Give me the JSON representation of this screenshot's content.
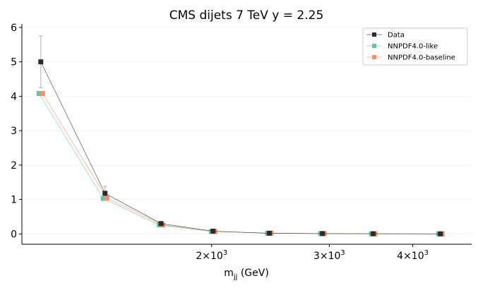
{
  "chart_data": {
    "type": "line",
    "title": "CMS dijets 7 TeV y = 2.25",
    "xlabel": "m",
    "xlabel_sub": "jj",
    "xlabel_unit": " (GeV)",
    "ylabel": "",
    "x_scale": "log",
    "xlim": [
      1040,
      4900
    ],
    "ylim": [
      -0.3,
      6.1
    ],
    "y_ticks": [
      0,
      1,
      2,
      3,
      4,
      5,
      6
    ],
    "x_ticks": [
      {
        "value": 2000,
        "mantissa": "2",
        "exponent": "3"
      },
      {
        "value": 3000,
        "mantissa": "3",
        "exponent": "3"
      },
      {
        "value": 4000,
        "mantissa": "4",
        "exponent": "3"
      }
    ],
    "x_tick_text": "×10",
    "grid": true,
    "legend_position": "top-right",
    "x": [
      1110,
      1385,
      1680,
      2010,
      2440,
      2930,
      3490,
      4400
    ],
    "series": [
      {
        "name": "Data",
        "color": "#2b2b2b",
        "marker": "square",
        "values": [
          5.0,
          1.18,
          0.3,
          0.08,
          0.02,
          0.01,
          0.005,
          0.002
        ],
        "errors": [
          0.75,
          0.2,
          0.04,
          0.01,
          0.004,
          0.002,
          0.001,
          0.0005
        ]
      },
      {
        "name": "NNPDF4.0-like",
        "color": "#66c2a5",
        "marker": "square",
        "values": [
          4.08,
          1.03,
          0.26,
          0.07,
          0.02,
          0.01,
          0.004,
          0.002
        ]
      },
      {
        "name": "NNPDF4.0-baseline",
        "color": "#fc8d62",
        "marker": "square",
        "values": [
          4.08,
          1.04,
          0.26,
          0.07,
          0.02,
          0.01,
          0.004,
          0.002
        ]
      }
    ]
  }
}
